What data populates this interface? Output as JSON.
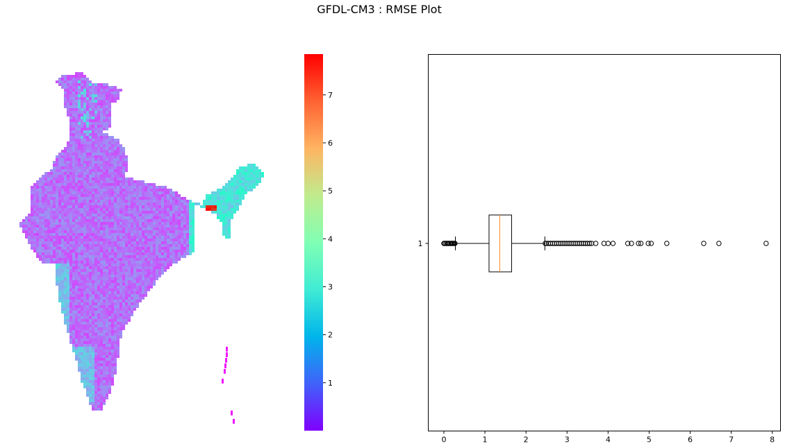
{
  "chart_data": [
    {
      "type": "heatmap",
      "title": "",
      "colormap": "rainbow",
      "colorbar": {
        "min": 0,
        "max": 7.85,
        "ticks": [
          "1",
          "2",
          "3",
          "4",
          "5",
          "6",
          "7"
        ]
      },
      "axes_visible": false,
      "notes": "Spatial RMSE values over the Indian landmass; mostly 1-2 with higher values (2.5-3.5) along the west coast and northeast, peak ~7.8 near Bangladesh border."
    },
    {
      "type": "boxplot",
      "orientation": "horizontal",
      "ytick_labels": [
        "1"
      ],
      "xticks": [
        "0",
        "1",
        "2",
        "3",
        "4",
        "5",
        "6",
        "7",
        "8"
      ],
      "xlim": [
        -0.38,
        8.2
      ],
      "stats": {
        "whisker_low": 0.28,
        "q1": 1.1,
        "median": 1.36,
        "q3": 1.65,
        "whisker_high": 2.46
      },
      "outliers_low": [
        0.0,
        0.02,
        0.05,
        0.08,
        0.1,
        0.12,
        0.15,
        0.18,
        0.2,
        0.22,
        0.25,
        0.27
      ],
      "outliers_high": [
        2.47,
        2.5,
        2.55,
        2.6,
        2.65,
        2.7,
        2.75,
        2.8,
        2.85,
        2.9,
        2.95,
        3.0,
        3.05,
        3.1,
        3.15,
        3.2,
        3.25,
        3.3,
        3.35,
        3.4,
        3.45,
        3.5,
        3.55,
        3.6,
        3.7,
        3.9,
        4.0,
        4.12,
        4.48,
        4.57,
        4.74,
        4.8,
        4.98,
        5.05,
        5.43,
        6.33,
        6.7,
        7.85
      ]
    }
  ],
  "figure": {
    "suptitle": "GFDL-CM3 : RMSE Plot"
  }
}
